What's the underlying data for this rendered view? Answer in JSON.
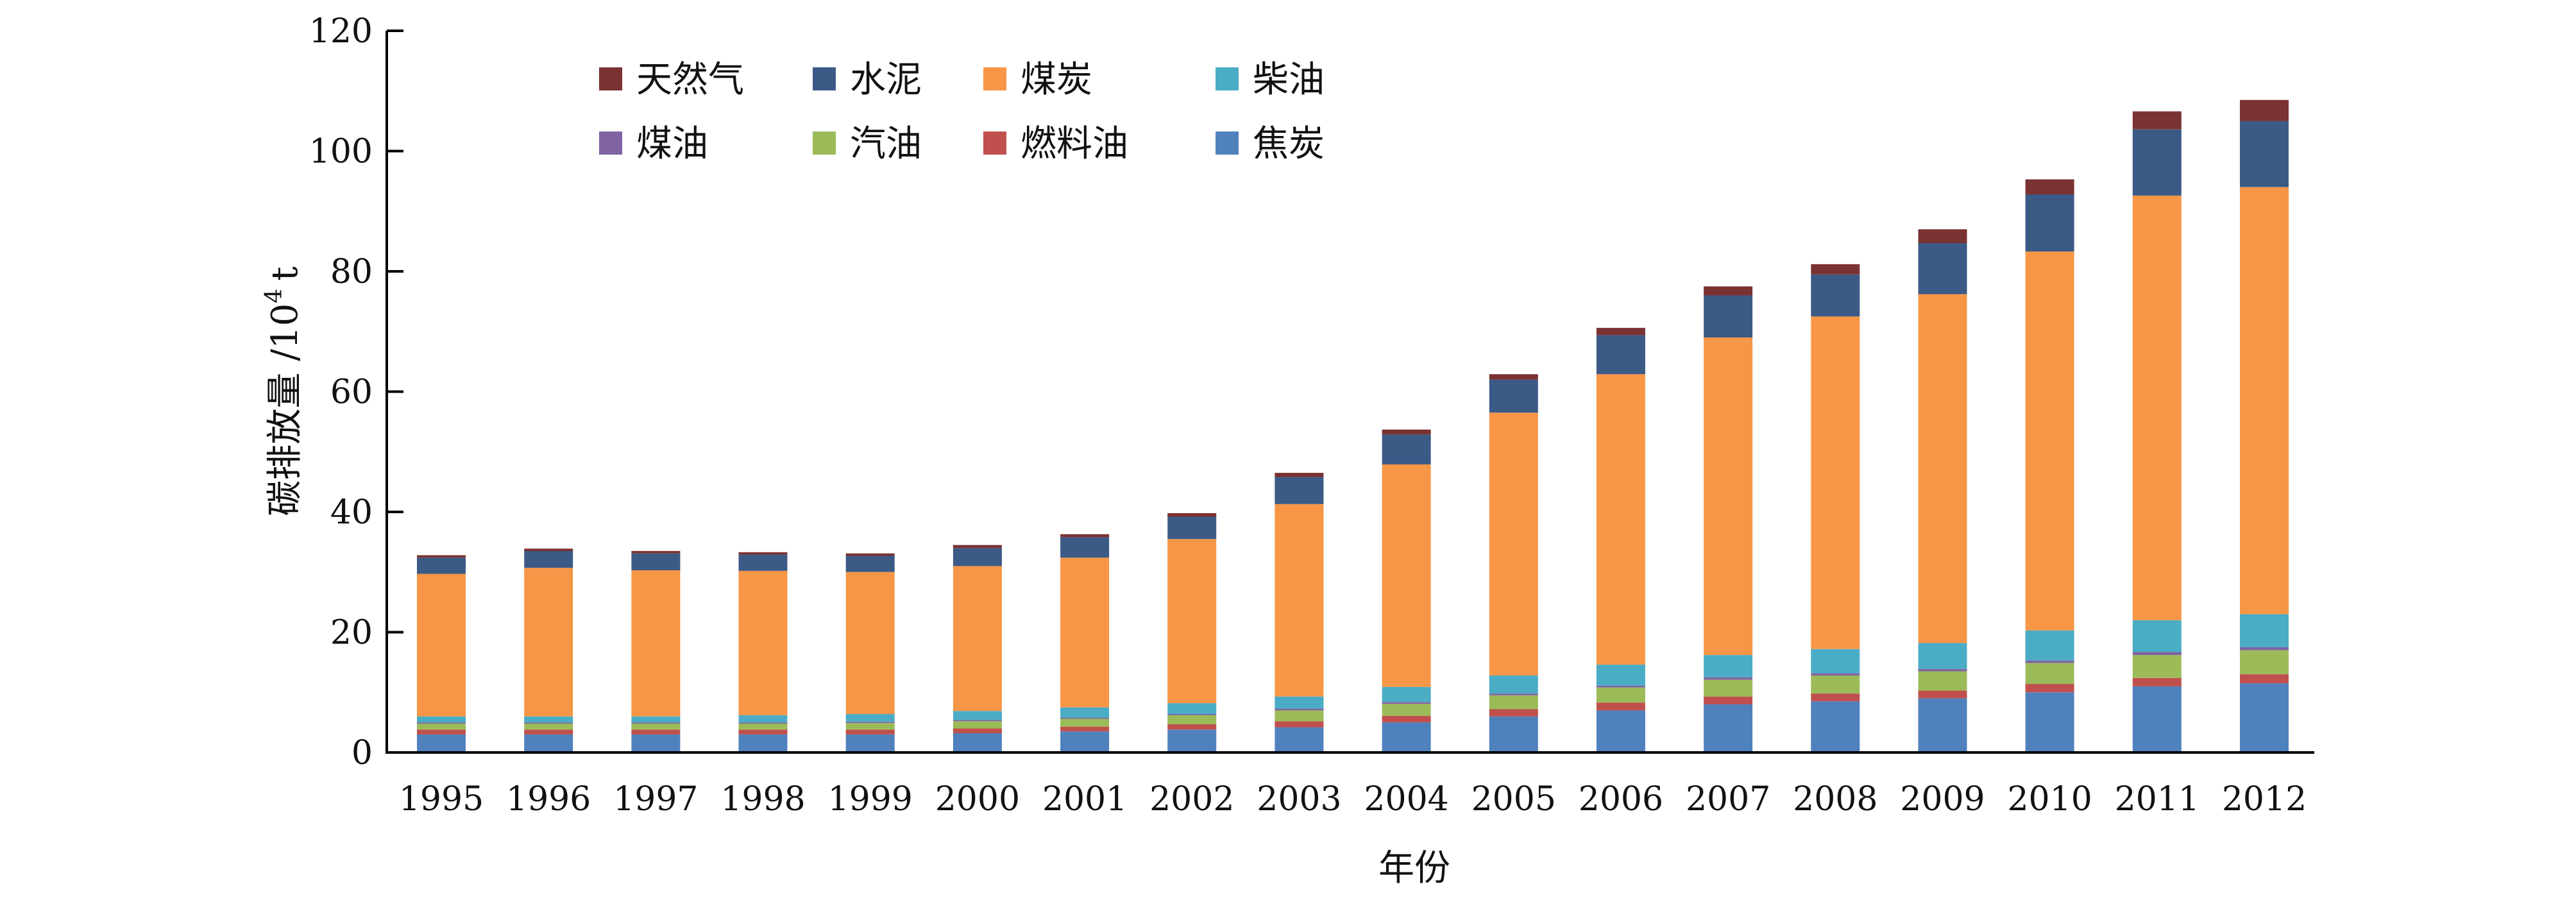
{
  "chart_data": {
    "type": "bar",
    "stacked": true,
    "title": "",
    "xlabel": "年份",
    "ylabel": "碳排放量 /10",
    "ylabel_superscript": "4",
    "ylabel_unit": "t",
    "ylim": [
      0,
      120
    ],
    "yticks": [
      0,
      20,
      40,
      60,
      80,
      100,
      120
    ],
    "grid": false,
    "legend_position": "top-left",
    "categories": [
      "1995",
      "1996",
      "1997",
      "1998",
      "1999",
      "2000",
      "2001",
      "2002",
      "2003",
      "2004",
      "2005",
      "2006",
      "2007",
      "2008",
      "2009",
      "2010",
      "2011",
      "2012"
    ],
    "series": [
      {
        "name": "焦炭",
        "color": "#4f81bd",
        "values": [
          3.0,
          3.0,
          3.0,
          3.0,
          3.0,
          3.2,
          3.5,
          3.8,
          4.2,
          5.0,
          6.0,
          7.0,
          8.0,
          8.5,
          9.0,
          10.0,
          11.0,
          11.5
        ]
      },
      {
        "name": "燃料油",
        "color": "#c0504d",
        "values": [
          0.8,
          0.8,
          0.8,
          0.8,
          0.8,
          0.8,
          0.8,
          0.9,
          1.0,
          1.1,
          1.2,
          1.3,
          1.3,
          1.3,
          1.3,
          1.4,
          1.4,
          1.5
        ]
      },
      {
        "name": "汽油",
        "color": "#9bbb59",
        "values": [
          1.0,
          1.0,
          1.0,
          1.0,
          1.1,
          1.2,
          1.3,
          1.5,
          1.8,
          2.0,
          2.3,
          2.5,
          2.8,
          3.0,
          3.2,
          3.5,
          3.8,
          4.0
        ]
      },
      {
        "name": "煤油",
        "color": "#8064a2",
        "values": [
          0.2,
          0.2,
          0.2,
          0.2,
          0.2,
          0.2,
          0.2,
          0.2,
          0.3,
          0.3,
          0.3,
          0.3,
          0.4,
          0.4,
          0.4,
          0.4,
          0.5,
          0.5
        ]
      },
      {
        "name": "柴油",
        "color": "#4bacc6",
        "values": [
          1.0,
          1.0,
          1.0,
          1.2,
          1.3,
          1.5,
          1.7,
          1.8,
          2.0,
          2.5,
          3.0,
          3.5,
          3.7,
          4.0,
          4.3,
          5.0,
          5.3,
          5.5
        ]
      },
      {
        "name": "煤炭",
        "color": "#f79646",
        "values": [
          23.7,
          24.7,
          24.3,
          24.0,
          23.6,
          24.1,
          24.9,
          27.3,
          32.0,
          37.0,
          43.7,
          48.3,
          52.8,
          55.3,
          58.0,
          63.0,
          70.6,
          71.0
        ]
      },
      {
        "name": "水泥",
        "color": "#3c5a86",
        "values": [
          2.7,
          2.8,
          2.8,
          2.7,
          2.7,
          3.0,
          3.4,
          3.7,
          4.5,
          5.0,
          5.5,
          6.5,
          7.0,
          7.0,
          8.5,
          9.5,
          11.0,
          11.0
        ]
      },
      {
        "name": "天然气",
        "color": "#7b3232",
        "values": [
          0.4,
          0.4,
          0.4,
          0.4,
          0.4,
          0.5,
          0.5,
          0.6,
          0.7,
          0.8,
          0.9,
          1.2,
          1.5,
          1.7,
          2.3,
          2.5,
          3.0,
          3.5
        ]
      }
    ],
    "legend_order": [
      "天然气",
      "水泥",
      "煤炭",
      "柴油",
      "煤油",
      "汽油",
      "燃料油",
      "焦炭"
    ]
  }
}
